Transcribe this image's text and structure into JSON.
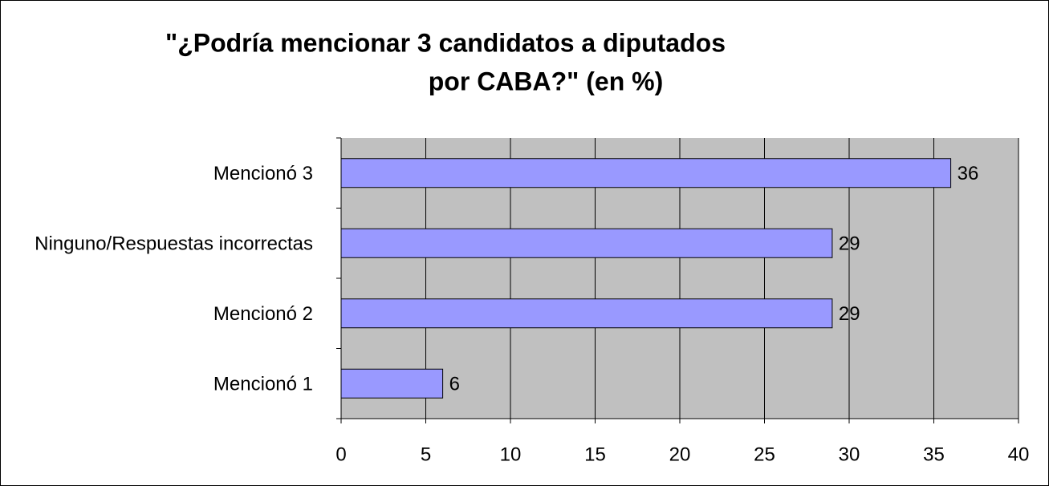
{
  "chart_data": {
    "type": "bar",
    "orientation": "horizontal",
    "title": [
      "\"¿Podría mencionar 3 candidatos a diputados",
      "por CABA?\" (en %)"
    ],
    "categories": [
      "Mencionó 3",
      "Ninguno/Respuestas incorrectas",
      "Mencionó 2",
      "Mencionó 1"
    ],
    "values": [
      36,
      29,
      29,
      6
    ],
    "color": "#9999ff",
    "xlim": [
      0,
      40
    ],
    "xticks": [
      0,
      5,
      10,
      15,
      20,
      25,
      30,
      35,
      40
    ],
    "grid": true
  }
}
